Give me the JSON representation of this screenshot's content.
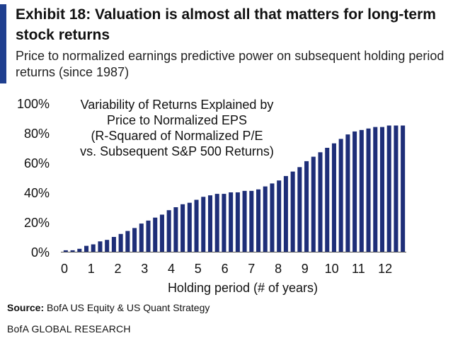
{
  "header": {
    "title": "Exhibit 18: Valuation is almost all that matters for long-term stock returns",
    "subtitle": "Price to normalized earnings predictive power on subsequent holding period returns (since 1987)"
  },
  "footer": {
    "source_label": "Source:",
    "source_text": "BofA US Equity & US Quant Strategy",
    "brand": "BofA GLOBAL RESEARCH"
  },
  "colors": {
    "accent": "#1f3f8f",
    "bar": "#1e2e78"
  },
  "chart_data": {
    "type": "bar",
    "annotation": [
      "Variability of Returns Explained by",
      "Price to Normalized EPS",
      "(R-Squared of Normalized P/E",
      "vs. Subsequent S&P 500 Returns)"
    ],
    "xlabel": "Holding period  (# of years)",
    "ylabel": "",
    "ylim": [
      0,
      100
    ],
    "xlim": [
      0,
      12.5
    ],
    "yticks": [
      0,
      20,
      40,
      60,
      80,
      100
    ],
    "ytick_labels": [
      "0%",
      "20%",
      "40%",
      "60%",
      "80%",
      "100%"
    ],
    "xticks": [
      0,
      1,
      2,
      3,
      4,
      5,
      6,
      7,
      8,
      9,
      10,
      11,
      12
    ],
    "xtick_labels": [
      "0",
      "1",
      "2",
      "3",
      "4",
      "5",
      "6",
      "7",
      "8",
      "9",
      "10",
      "11",
      "12"
    ],
    "x": [
      0.25,
      0.5,
      0.75,
      1,
      1.25,
      1.5,
      1.75,
      2,
      2.25,
      2.5,
      2.75,
      3,
      3.25,
      3.5,
      3.75,
      4,
      4.25,
      4.5,
      4.75,
      5,
      5.25,
      5.5,
      5.75,
      6,
      6.25,
      6.5,
      6.75,
      7,
      7.25,
      7.5,
      7.75,
      8,
      8.25,
      8.5,
      8.75,
      9,
      9.25,
      9.5,
      9.75,
      10,
      10.25,
      10.5,
      10.75,
      11,
      11.25,
      11.5,
      11.75,
      12,
      12.25,
      12.5
    ],
    "values": [
      1,
      1,
      2,
      4,
      5,
      7,
      8,
      10,
      12,
      14,
      16,
      19,
      21,
      23,
      25,
      28,
      30,
      32,
      33,
      35,
      37,
      38,
      39,
      39,
      40,
      40,
      41,
      41,
      42,
      44,
      46,
      48,
      51,
      54,
      57,
      61,
      64,
      67,
      70,
      73,
      76,
      79,
      81,
      82,
      83,
      84,
      84,
      85,
      85,
      85
    ]
  }
}
